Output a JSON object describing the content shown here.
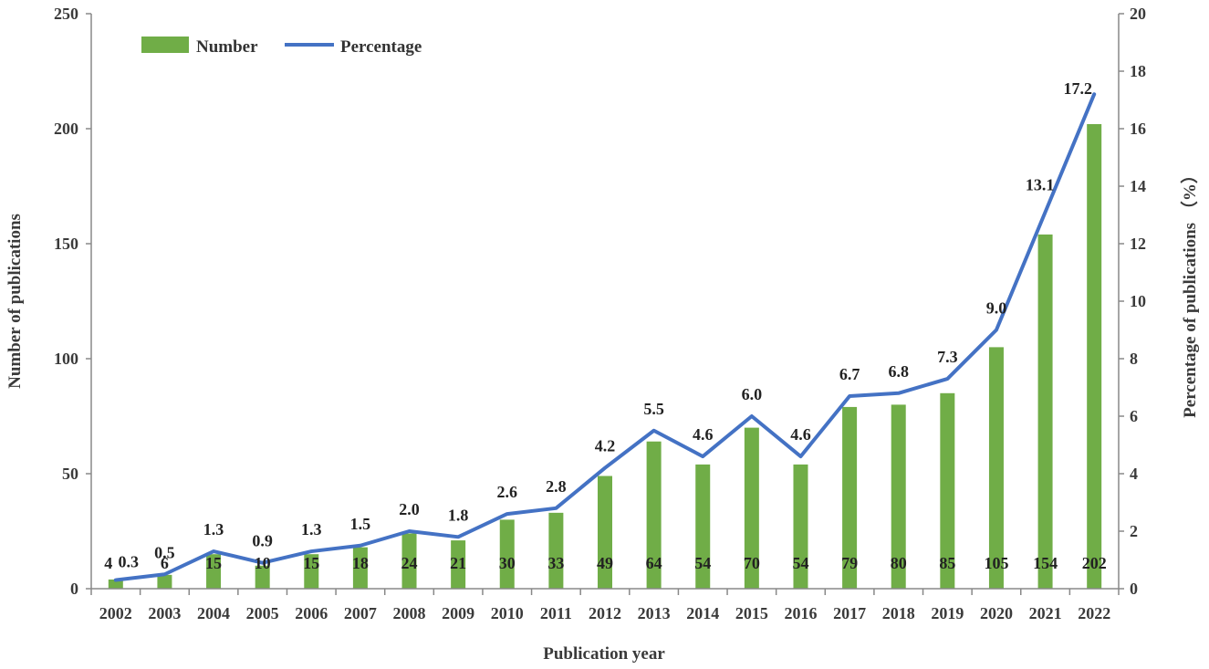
{
  "chart_data": {
    "type": "bar+line",
    "title": "",
    "categories": [
      "2002",
      "2003",
      "2004",
      "2005",
      "2006",
      "2007",
      "2008",
      "2009",
      "2010",
      "2011",
      "2012",
      "2013",
      "2014",
      "2015",
      "2016",
      "2017",
      "2018",
      "2019",
      "2020",
      "2021",
      "2022"
    ],
    "series": [
      {
        "name": "Number",
        "type": "bar",
        "axis": "left",
        "color": "#70ad47",
        "values": [
          4,
          6,
          15,
          10,
          15,
          18,
          24,
          21,
          30,
          33,
          49,
          64,
          54,
          70,
          54,
          79,
          80,
          85,
          105,
          154,
          202
        ],
        "labels": [
          "4",
          "6",
          "15",
          "10",
          "15",
          "18",
          "24",
          "21",
          "30",
          "33",
          "49",
          "64",
          "54",
          "70",
          "54",
          "79",
          "80",
          "85",
          "105",
          "154",
          "202"
        ]
      },
      {
        "name": "Percentage",
        "type": "line",
        "axis": "right",
        "color": "#4472c4",
        "values": [
          0.3,
          0.5,
          1.3,
          0.9,
          1.3,
          1.5,
          2.0,
          1.8,
          2.6,
          2.8,
          4.2,
          5.5,
          4.6,
          6.0,
          4.6,
          6.7,
          6.8,
          7.3,
          9.0,
          13.1,
          17.2
        ],
        "labels": [
          "0.3",
          "0.5",
          "1.3",
          "0.9",
          "1.3",
          "1.5",
          "2.0",
          "1.8",
          "2.6",
          "2.8",
          "4.2",
          "5.5",
          "4.6",
          "6.0",
          "4.6",
          "6.7",
          "6.8",
          "7.3",
          "9.0",
          "13.1",
          "17.2"
        ]
      }
    ],
    "xlabel": "Publication year",
    "ylabel": "Number of publications",
    "y2label": "Percentage of publications （%）",
    "ylim": [
      0,
      250
    ],
    "y2lim": [
      0,
      20
    ],
    "yticks": [
      "0",
      "50",
      "100",
      "150",
      "200",
      "250"
    ],
    "y2ticks": [
      "0",
      "2",
      "4",
      "6",
      "8",
      "10",
      "12",
      "14",
      "16",
      "18",
      "20"
    ],
    "grid": false,
    "legend": {
      "position": "top-left",
      "items": [
        "Number",
        "Percentage"
      ]
    }
  }
}
